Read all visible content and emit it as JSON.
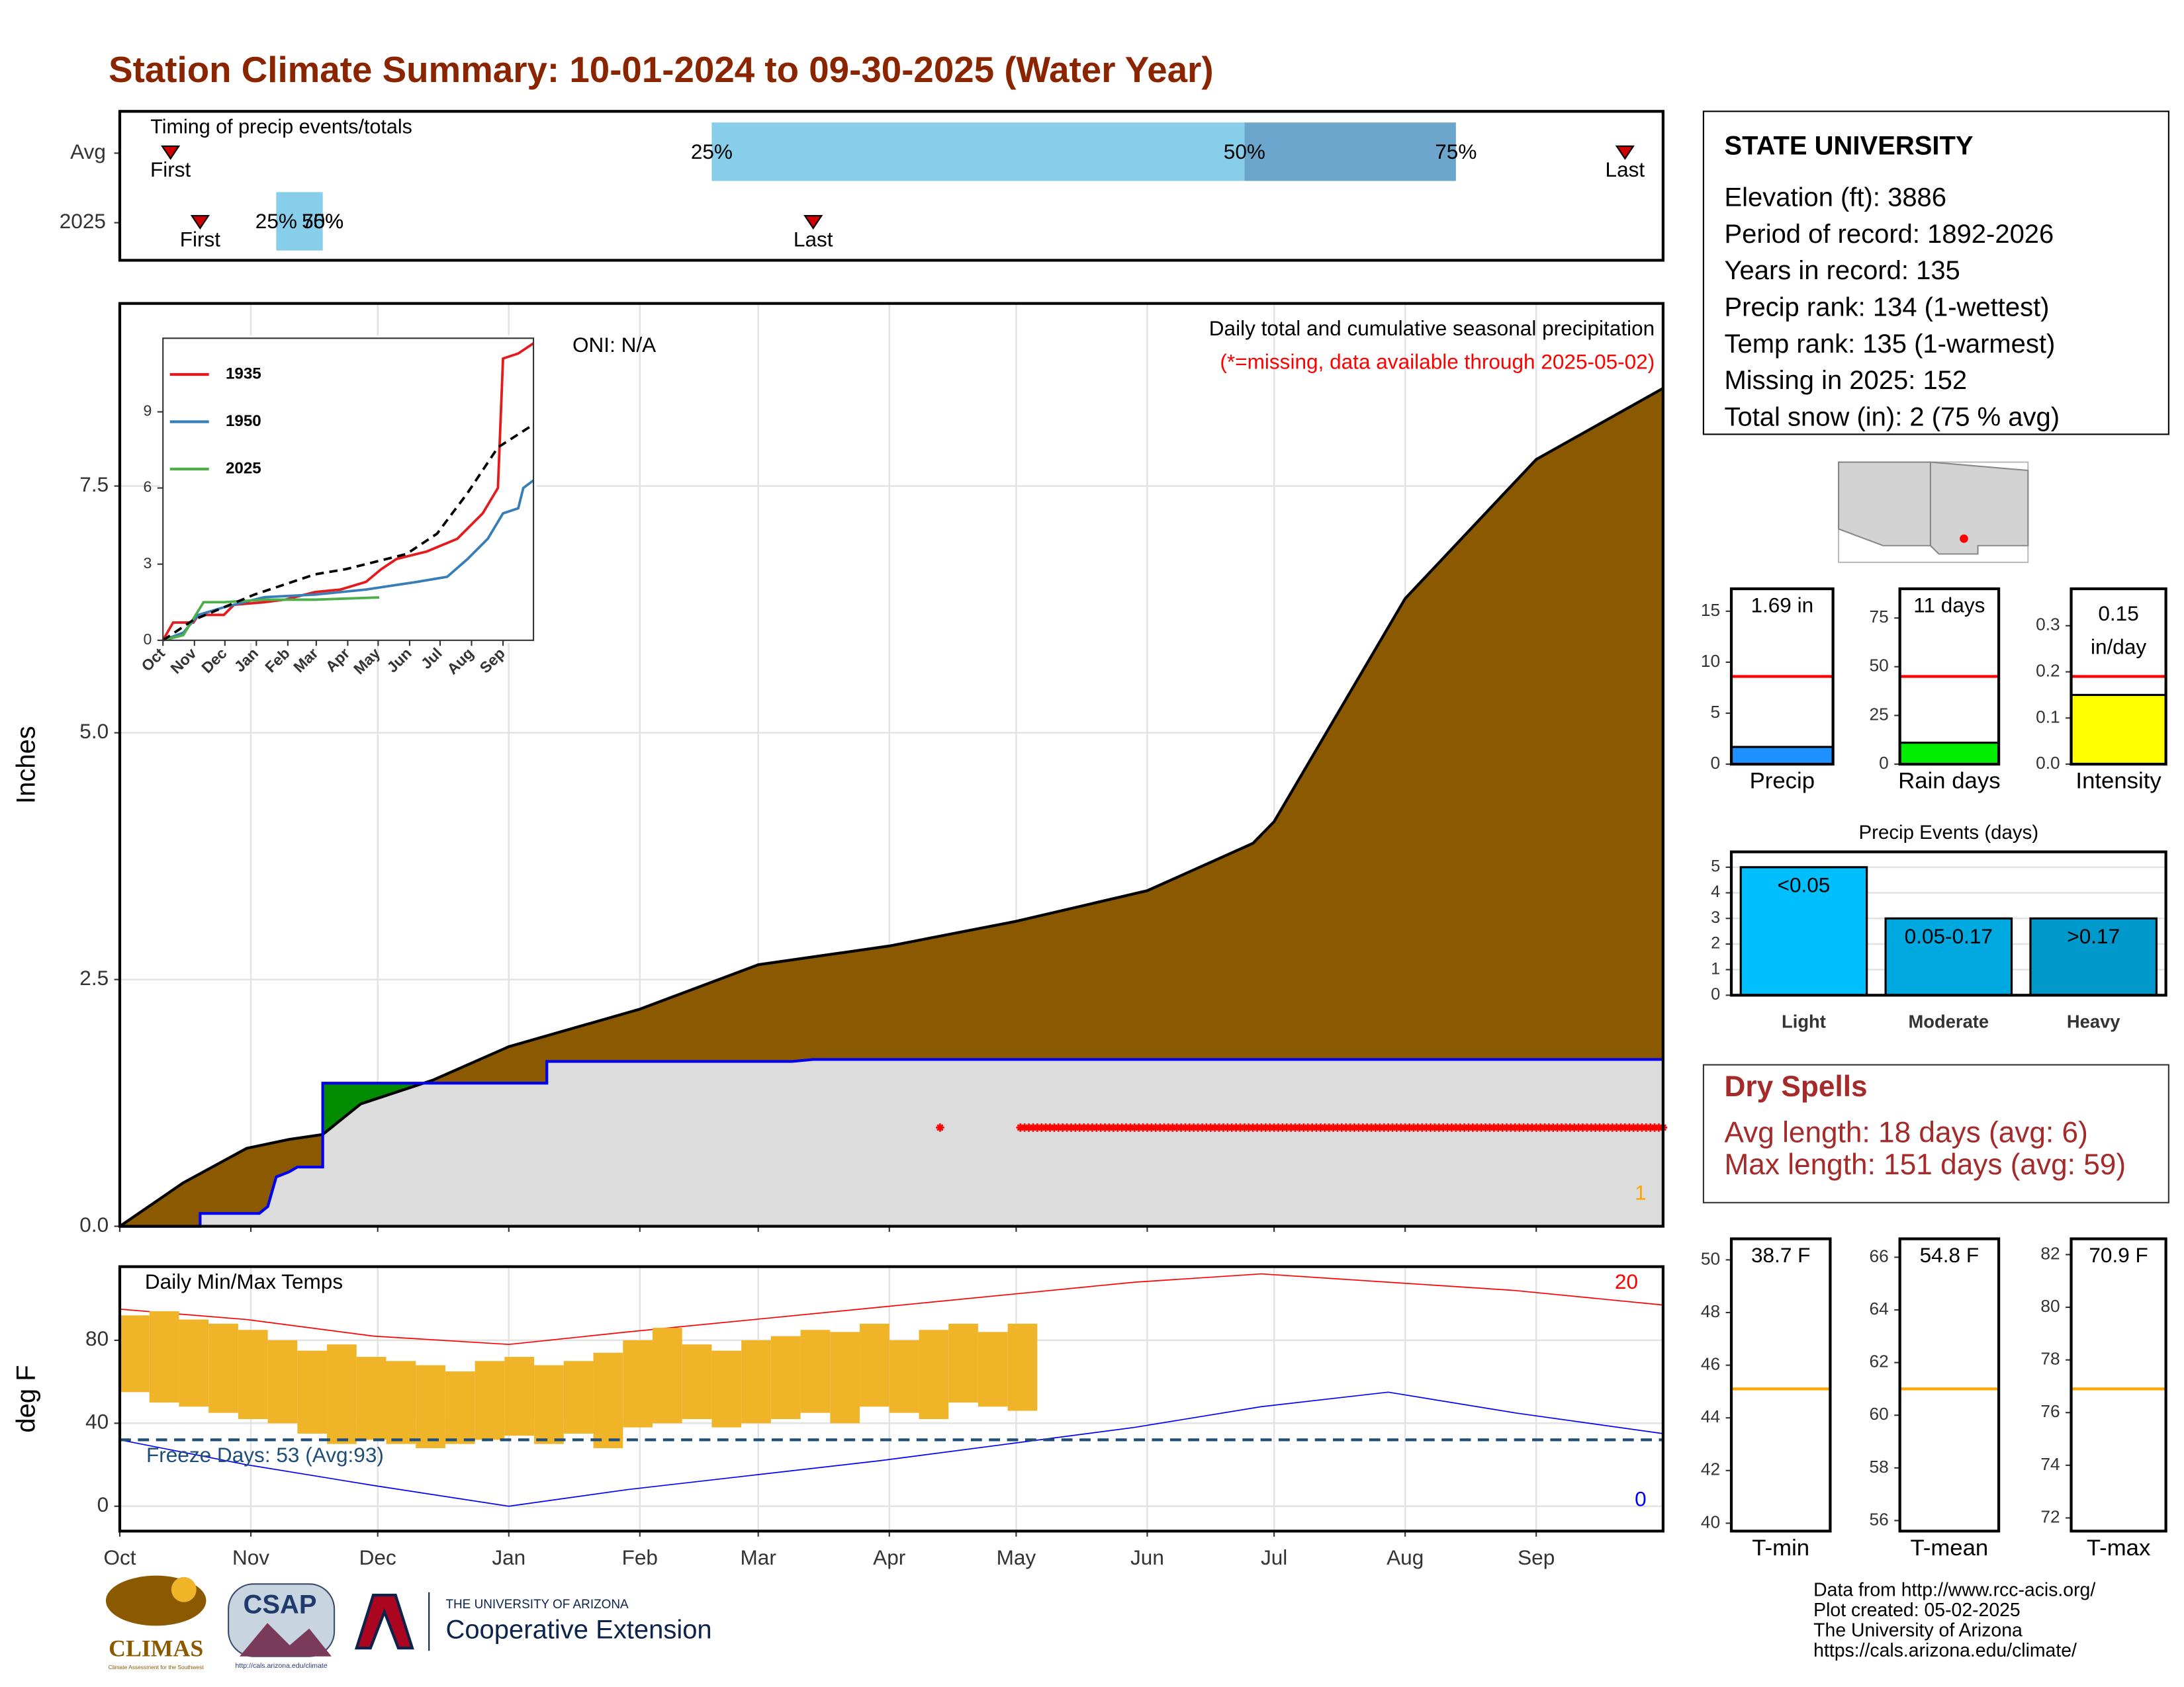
{
  "title": "Station Climate Summary: 10-01-2024 to 09-30-2025 (Water Year)",
  "chart_data": [
    {
      "type": "timing",
      "title": "Timing of precip events/totals",
      "categories": [
        "Avg",
        "2025"
      ],
      "xlim": [
        0,
        365
      ],
      "first_label": "First",
      "last_label": "Last",
      "quantile_labels": [
        "25%",
        "50%",
        "75%"
      ],
      "first": [
        12,
        19
      ],
      "last": [
        356,
        164
      ],
      "quantiles": [
        [
          140,
          266,
          316
        ],
        [
          37,
          48,
          48
        ]
      ],
      "colors": [
        "#87ceeb",
        "#6ca6cd"
      ],
      "marker_color": "#cc0000"
    },
    {
      "type": "area",
      "ylabel": "Inches",
      "oni": "ONI: N/A",
      "annotation": "Daily total and cumulative seasonal precipitation",
      "note": "(*=missing, data available through 2025-05-02)",
      "count_label": "1",
      "xlim": [
        0,
        365
      ],
      "xticks": [
        0,
        31,
        61,
        92,
        123,
        151,
        182,
        212,
        243,
        273,
        304,
        335
      ],
      "ylim": [
        0,
        9.35
      ],
      "yticks": [
        {
          "value": 0,
          "label": "0.0"
        },
        2.5,
        {
          "value": 5,
          "label": "5.0"
        },
        7.5
      ],
      "grid": true,
      "average": {
        "color": "#8b5a00",
        "x": [
          0,
          15,
          30,
          40,
          48,
          57,
          74,
          92,
          123,
          151,
          182,
          212,
          243,
          268,
          273,
          304,
          335,
          365
        ],
        "values": [
          0,
          0.44,
          0.79,
          0.88,
          0.93,
          1.24,
          1.48,
          1.82,
          2.2,
          2.65,
          2.84,
          3.09,
          3.4,
          3.88,
          4.1,
          6.36,
          7.77,
          8.49
        ]
      },
      "current": {
        "color": "#0000ee",
        "fill": "#dcdcdc",
        "above_fill": "#008b00",
        "x": [
          0,
          19,
          19,
          33,
          35,
          37,
          40,
          42,
          48,
          48,
          101,
          101,
          159,
          164,
          365
        ],
        "values": [
          0,
          0,
          0.13,
          0.13,
          0.2,
          0.5,
          0.55,
          0.6,
          0.6,
          1.45,
          1.45,
          1.67,
          1.67,
          1.69,
          1.69
        ]
      },
      "missing": {
        "y": 1,
        "ranges": [
          [
            194,
            194
          ],
          [
            213,
            365
          ]
        ],
        "color": "#ff0000"
      }
    },
    {
      "type": "line",
      "xlim": [
        0,
        365
      ],
      "xticks": [
        {
          "value": 0,
          "label": "Oct"
        },
        {
          "value": 31,
          "label": "Nov"
        },
        {
          "value": 61,
          "label": "Dec"
        },
        {
          "value": 92,
          "label": "Jan"
        },
        {
          "value": 123,
          "label": "Feb"
        },
        {
          "value": 151,
          "label": "Mar"
        },
        {
          "value": 182,
          "label": "Apr"
        },
        {
          "value": 212,
          "label": "May"
        },
        {
          "value": 243,
          "label": "Jun"
        },
        {
          "value": 273,
          "label": "Jul"
        },
        {
          "value": 304,
          "label": "Aug"
        },
        {
          "value": 335,
          "label": "Sep"
        }
      ],
      "ylim": [
        0,
        11.9
      ],
      "yticks": [
        0,
        3,
        6,
        9
      ],
      "legend": "top-left",
      "series": [
        {
          "name": "1935",
          "color": "#e41a1c",
          "x": [
            0,
            10,
            30,
            35,
            60,
            70,
            100,
            120,
            150,
            175,
            200,
            215,
            230,
            260,
            290,
            315,
            330,
            335,
            350,
            365
          ],
          "values": [
            0,
            0.7,
            0.7,
            1,
            1,
            1.4,
            1.5,
            1.6,
            1.9,
            2,
            2.3,
            2.8,
            3.2,
            3.5,
            4,
            5,
            6,
            11.1,
            11.3,
            11.7
          ]
        },
        {
          "name": "1950",
          "color": "#377eb8",
          "x": [
            0,
            20,
            35,
            60,
            100,
            150,
            200,
            250,
            280,
            300,
            320,
            335,
            350,
            355,
            365
          ],
          "values": [
            0,
            0.3,
            1,
            1.3,
            1.7,
            1.8,
            2,
            2.3,
            2.5,
            3.2,
            4,
            5,
            5.2,
            6,
            6.3
          ]
        },
        {
          "name": "2025",
          "color": "#4daf4a",
          "x": [
            0,
            20,
            40,
            60,
            100,
            150,
            213
          ],
          "values": [
            0,
            0.2,
            1.5,
            1.5,
            1.6,
            1.6,
            1.69
          ]
        }
      ],
      "average": {
        "color": "#000000",
        "x": [
          0,
          30,
          60,
          90,
          120,
          150,
          180,
          210,
          240,
          270,
          300,
          330,
          365
        ],
        "values": [
          0,
          0.8,
          1.3,
          1.8,
          2.2,
          2.6,
          2.8,
          3.1,
          3.4,
          4.2,
          5.8,
          7.6,
          8.5
        ]
      }
    },
    {
      "type": "range",
      "title": "Daily Min/Max Temps",
      "ylabel": "deg F",
      "xlim": [
        0,
        365
      ],
      "xticks": [
        {
          "value": 0,
          "label": "Oct"
        },
        {
          "value": 31,
          "label": "Nov"
        },
        {
          "value": 61,
          "label": "Dec"
        },
        {
          "value": 92,
          "label": "Jan"
        },
        {
          "value": 123,
          "label": "Feb"
        },
        {
          "value": 151,
          "label": "Mar"
        },
        {
          "value": 182,
          "label": "Apr"
        },
        {
          "value": 212,
          "label": "May"
        },
        {
          "value": 243,
          "label": "Jun"
        },
        {
          "value": 273,
          "label": "Jul"
        },
        {
          "value": 304,
          "label": "Aug"
        },
        {
          "value": 335,
          "label": "Sep"
        }
      ],
      "ylim": [
        -12,
        115.5
      ],
      "yticks": [
        0,
        40,
        80
      ],
      "grid": true,
      "color": "#f0b429",
      "x": [
        0,
        7,
        14,
        21,
        28,
        35,
        42,
        49,
        56,
        63,
        70,
        77,
        84,
        91,
        98,
        105,
        112,
        119,
        126,
        133,
        140,
        147,
        154,
        161,
        168,
        175,
        182,
        189,
        196,
        203,
        210
      ],
      "min": [
        55,
        50,
        48,
        45,
        42,
        40,
        35,
        30,
        32,
        30,
        28,
        30,
        32,
        34,
        30,
        35,
        28,
        38,
        40,
        42,
        38,
        40,
        42,
        45,
        40,
        48,
        45,
        42,
        50,
        48,
        46
      ],
      "max": [
        92,
        94,
        90,
        88,
        85,
        80,
        75,
        78,
        72,
        70,
        68,
        65,
        70,
        72,
        68,
        70,
        74,
        80,
        86,
        78,
        75,
        80,
        82,
        85,
        84,
        88,
        80,
        85,
        88,
        84,
        88
      ],
      "record_high": {
        "color": "#ff0000",
        "count_label": "20",
        "x": [
          0,
          30,
          60,
          92,
          120,
          150,
          180,
          210,
          240,
          270,
          300,
          330,
          365
        ],
        "values": [
          95,
          90,
          82,
          78,
          84,
          90,
          96,
          102,
          108,
          112,
          108,
          104,
          97
        ]
      },
      "record_low": {
        "color": "#0000ff",
        "count_label": "0",
        "x": [
          0,
          30,
          60,
          92,
          120,
          150,
          180,
          210,
          240,
          270,
          300,
          330,
          365
        ],
        "values": [
          32,
          20,
          10,
          0,
          8,
          15,
          22,
          30,
          38,
          48,
          55,
          45,
          35
        ]
      },
      "freeze": {
        "value": 32,
        "label": "Freeze Days: 53 (Avg:93)",
        "color": "#1f4e79"
      }
    },
    {
      "type": "bar",
      "categories": [
        "Precip"
      ],
      "values": [
        1.69
      ],
      "value_labels": [
        "1.69 in"
      ],
      "color": "#1e90ff",
      "ylim": [
        0,
        17.2
      ],
      "yticks": [
        0,
        5,
        10,
        15
      ],
      "reference": {
        "value": 8.6,
        "color": "#ff0000"
      }
    },
    {
      "type": "bar",
      "categories": [
        "Rain days"
      ],
      "values": [
        11
      ],
      "value_labels": [
        "11 days"
      ],
      "color": "#00ee00",
      "ylim": [
        0,
        90
      ],
      "yticks": [
        0,
        25,
        50,
        75
      ],
      "reference": {
        "value": 45,
        "color": "#ff0000"
      }
    },
    {
      "type": "bar",
      "categories": [
        "Intensity"
      ],
      "values": [
        0.15
      ],
      "value_labels": [
        "0.15 in/day"
      ],
      "color": "#ffff00",
      "ylim": [
        0,
        0.38
      ],
      "yticks": [
        {
          "value": 0,
          "label": "0.0"
        },
        0.1,
        0.2,
        0.3
      ],
      "reference": {
        "value": 0.19,
        "color": "#ff0000"
      }
    },
    {
      "type": "bar",
      "title": "Precip Events (days)",
      "categories": [
        "Light",
        "Moderate",
        "Heavy"
      ],
      "values": [
        5,
        3,
        3
      ],
      "value_labels": [
        "<0.05",
        "0.05-0.17",
        ">0.17"
      ],
      "colors": [
        "#00bfff",
        "#00a8e0",
        "#0099cc"
      ],
      "ylim": [
        0,
        5.6
      ],
      "yticks": [
        0,
        1,
        2,
        3,
        4,
        5
      ],
      "grid": true
    },
    {
      "type": "bar",
      "categories": [
        "T-min"
      ],
      "values": [
        38.7
      ],
      "value_labels": [
        "38.7 F"
      ],
      "color": "#f0b429",
      "ylim": [
        39.7,
        50.8
      ],
      "yticks": [
        40,
        42,
        44,
        46,
        48,
        50
      ],
      "reference": {
        "value": 45.1,
        "color": "#ffa500"
      }
    },
    {
      "type": "bar",
      "categories": [
        "T-mean"
      ],
      "values": [
        54.8
      ],
      "value_labels": [
        "54.8 F"
      ],
      "color": "#f0b429",
      "ylim": [
        55.6,
        66.7
      ],
      "yticks": [
        56,
        58,
        60,
        62,
        64,
        66
      ],
      "reference": {
        "value": 61.0,
        "color": "#ffa500"
      }
    },
    {
      "type": "bar",
      "categories": [
        "T-max"
      ],
      "values": [
        70.9
      ],
      "value_labels": [
        "70.9 F"
      ],
      "color": "#f0b429",
      "ylim": [
        71.5,
        82.6
      ],
      "yticks": [
        72,
        74,
        76,
        78,
        80,
        82
      ],
      "reference": {
        "value": 76.9,
        "color": "#ffa500"
      }
    }
  ],
  "station": {
    "name": "STATE UNIVERSITY",
    "lines": [
      "Elevation (ft): 3886",
      "Period of record: 1892-2026",
      "Years in record: 135",
      "Precip rank: 134 (1-wettest)",
      "Temp rank: 135 (1-warmest)",
      "Missing in 2025: 152",
      "Total snow (in): 2 (75 % avg)"
    ]
  },
  "dry_spells": {
    "title": "Dry Spells",
    "lines": [
      "Avg length: 18 days (avg: 6)",
      "Max length: 151 days (avg: 59)"
    ]
  },
  "footer": [
    "Data from http://www.rcc-acis.org/",
    "Plot created: 05-02-2025",
    "The University of Arizona",
    "https://cals.arizona.edu/climate/"
  ],
  "logos": {
    "climas": "CLIMAS",
    "climas_sub": "Climate Assessment for the Southwest",
    "csap": "CSAP",
    "csap_url": "http://cals.arizona.edu/climate",
    "ua_small": "THE UNIVERSITY OF ARIZONA",
    "ua": "Cooperative Extension"
  }
}
